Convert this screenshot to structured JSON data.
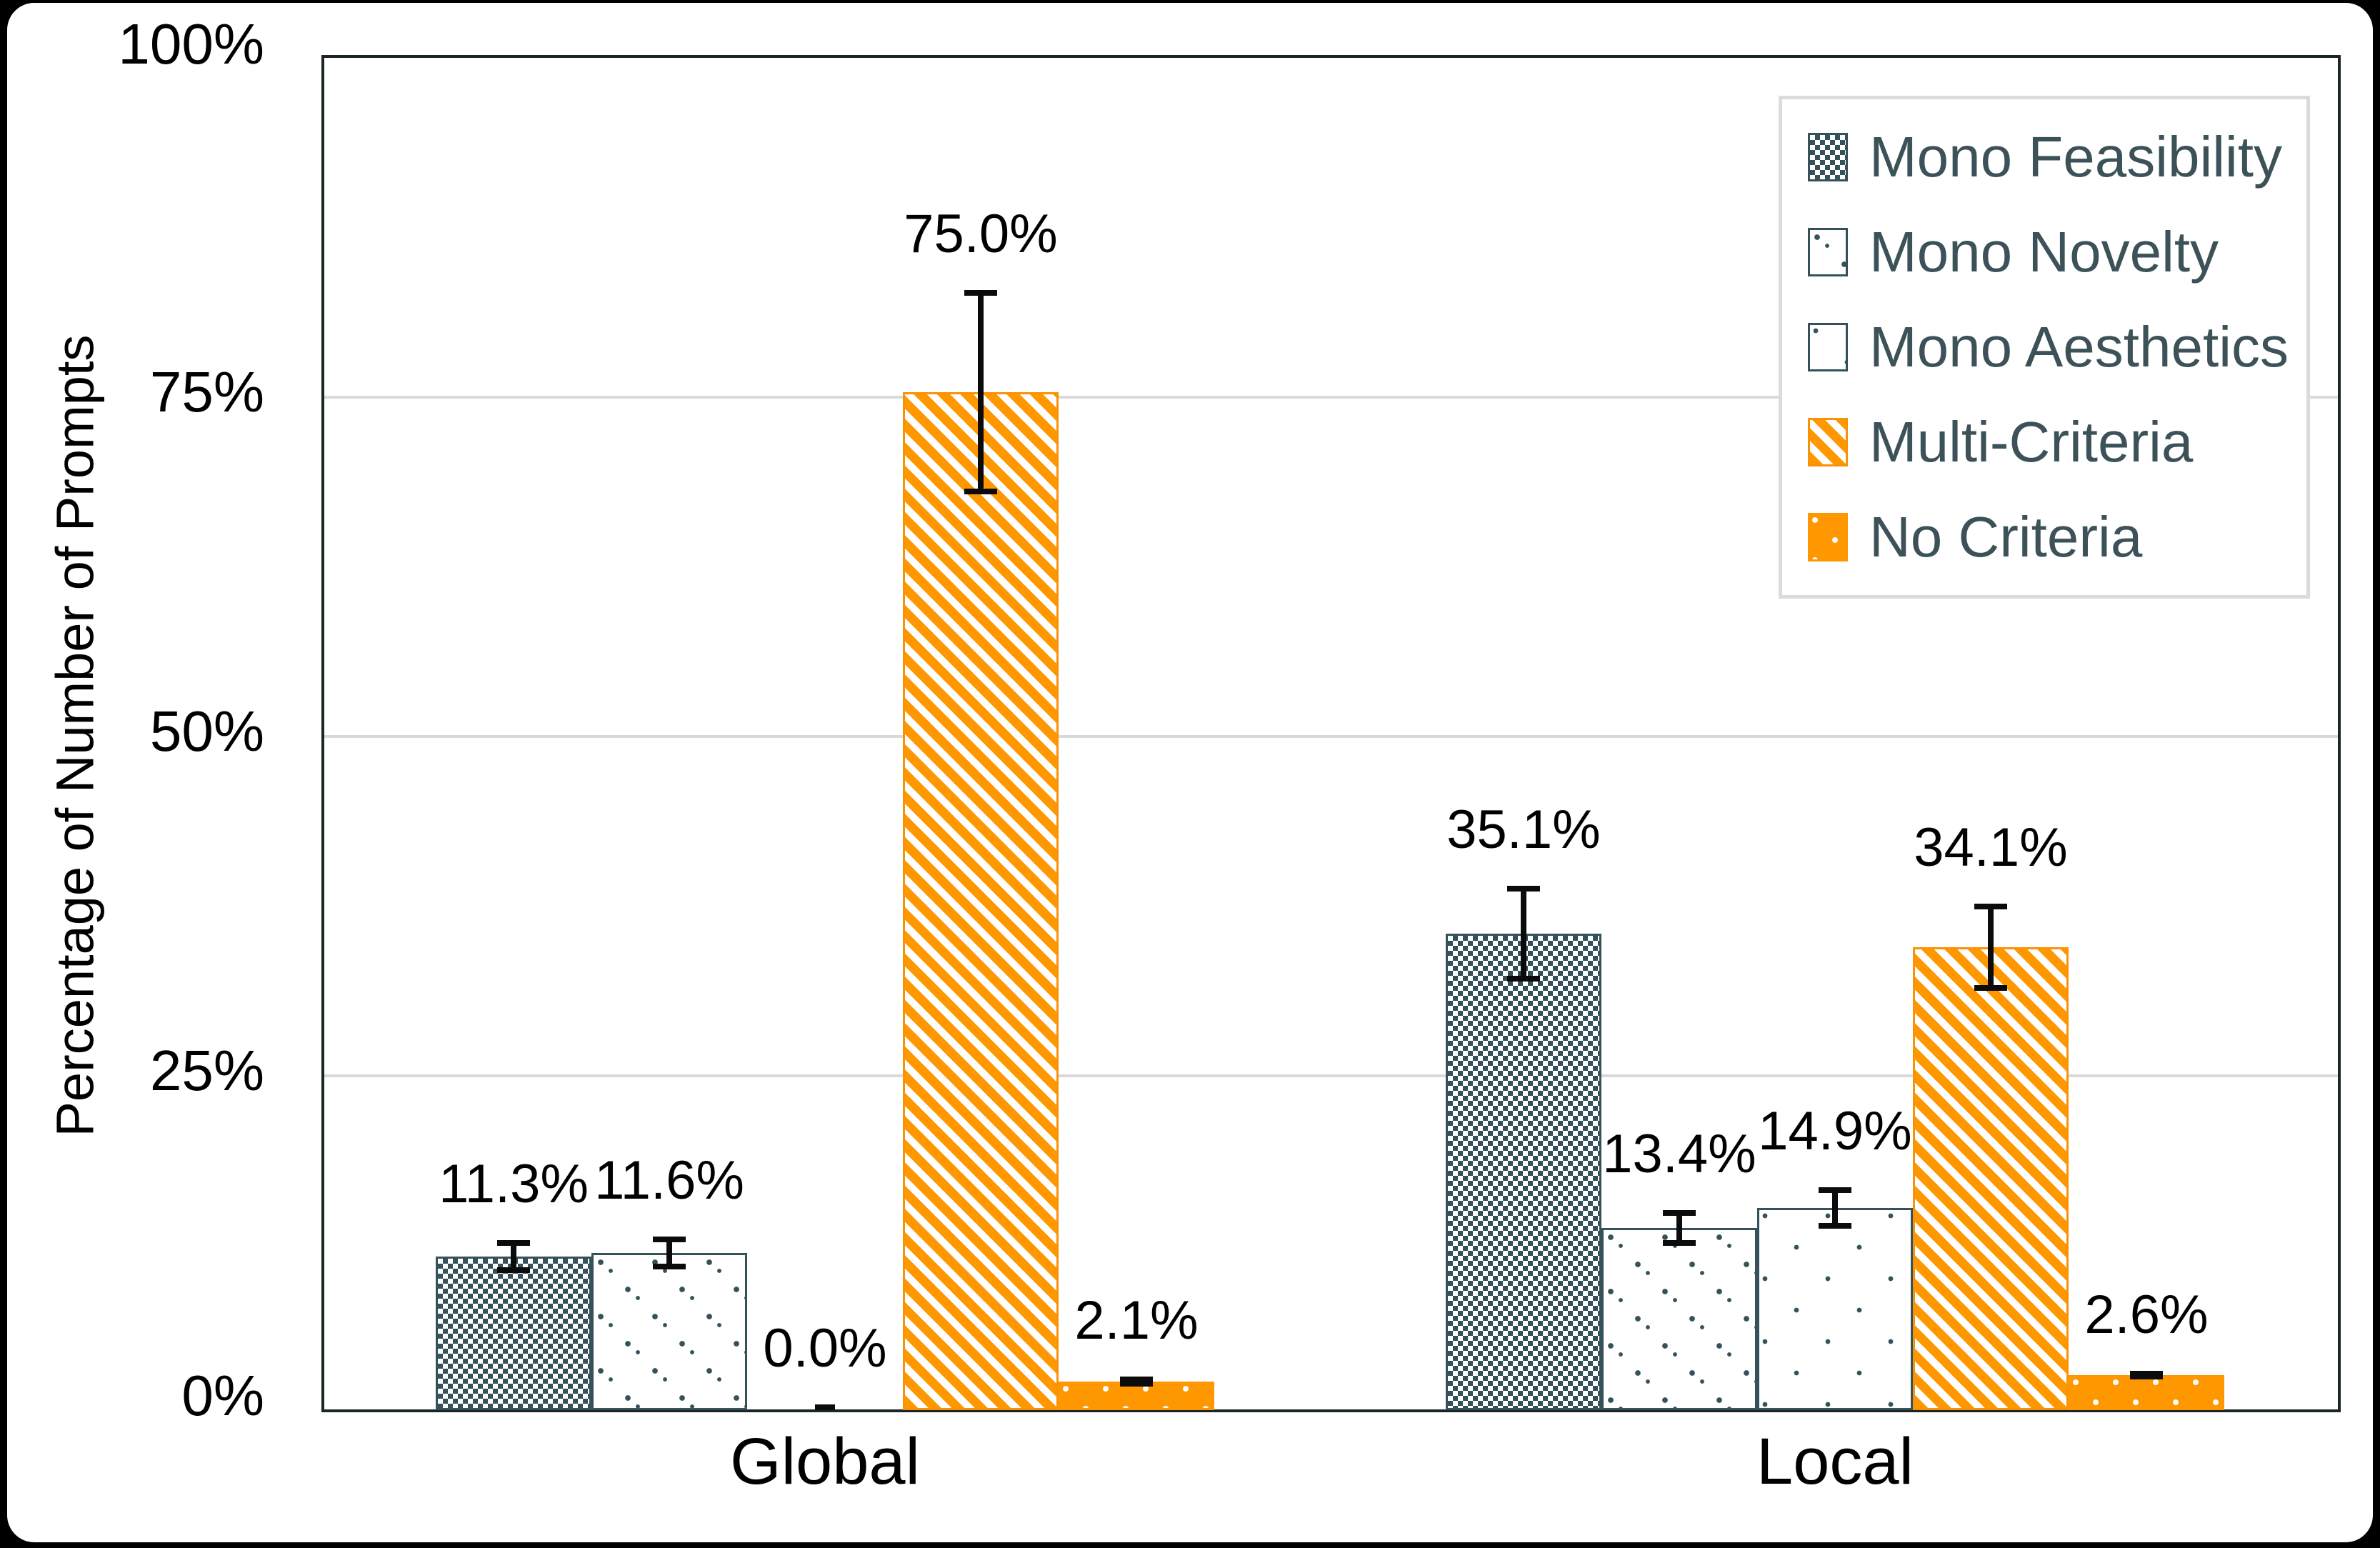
{
  "chart_data": {
    "type": "bar",
    "title": "",
    "ylabel": "Percentage of Number of Prompts",
    "xlabel": "",
    "categories": [
      "Global",
      "Local"
    ],
    "y_tick_labels": [
      "0%",
      "25%",
      "50%",
      "75%",
      "100%"
    ],
    "y_tick_percents": [
      0,
      25,
      50,
      75,
      100
    ],
    "ylim": [
      0,
      100
    ],
    "grid": "horizontal gridlines at 25%, 50%, 75%",
    "legend_position": "top-right inside plot",
    "series": [
      {
        "name": "Mono Feasibility",
        "hatch": "dense-checker",
        "color": "#35525B",
        "values": [
          11.3,
          35.1
        ],
        "value_labels": [
          "11.3%",
          "35.1%"
        ],
        "error_pm": [
          1.2,
          3.5
        ]
      },
      {
        "name": "Mono Novelty",
        "hatch": "chevron-dots",
        "color": "#35525B",
        "values": [
          11.6,
          13.4
        ],
        "value_labels": [
          "11.6%",
          "13.4%"
        ],
        "error_pm": [
          1.2,
          1.3
        ]
      },
      {
        "name": "Mono Aesthetics",
        "hatch": "sparse-dots",
        "color": "#35525B",
        "values": [
          0.0,
          14.9
        ],
        "value_labels": [
          "0.0%",
          "14.9%"
        ],
        "error_pm": [
          0.0,
          1.5
        ]
      },
      {
        "name": "Multi-Criteria",
        "hatch": "diagonal-stripes",
        "color": "#FF9800",
        "values": [
          75.0,
          34.1
        ],
        "value_labels": [
          "75.0%",
          "34.1%"
        ],
        "error_pm": [
          7.5,
          3.2
        ]
      },
      {
        "name": "No Criteria",
        "hatch": "white-dots-on-solid",
        "color": "#FF9800",
        "values": [
          2.1,
          2.6
        ],
        "value_labels": [
          "2.1%",
          "2.6%"
        ],
        "error_pm": [
          0.35,
          0.3
        ]
      }
    ],
    "colors": {
      "teal": "#35525B",
      "orange": "#FF9800",
      "grid": "#D9D9D9",
      "text": "#000000",
      "legend_text": "#3C5258",
      "axis_border": "#1B2427"
    }
  }
}
